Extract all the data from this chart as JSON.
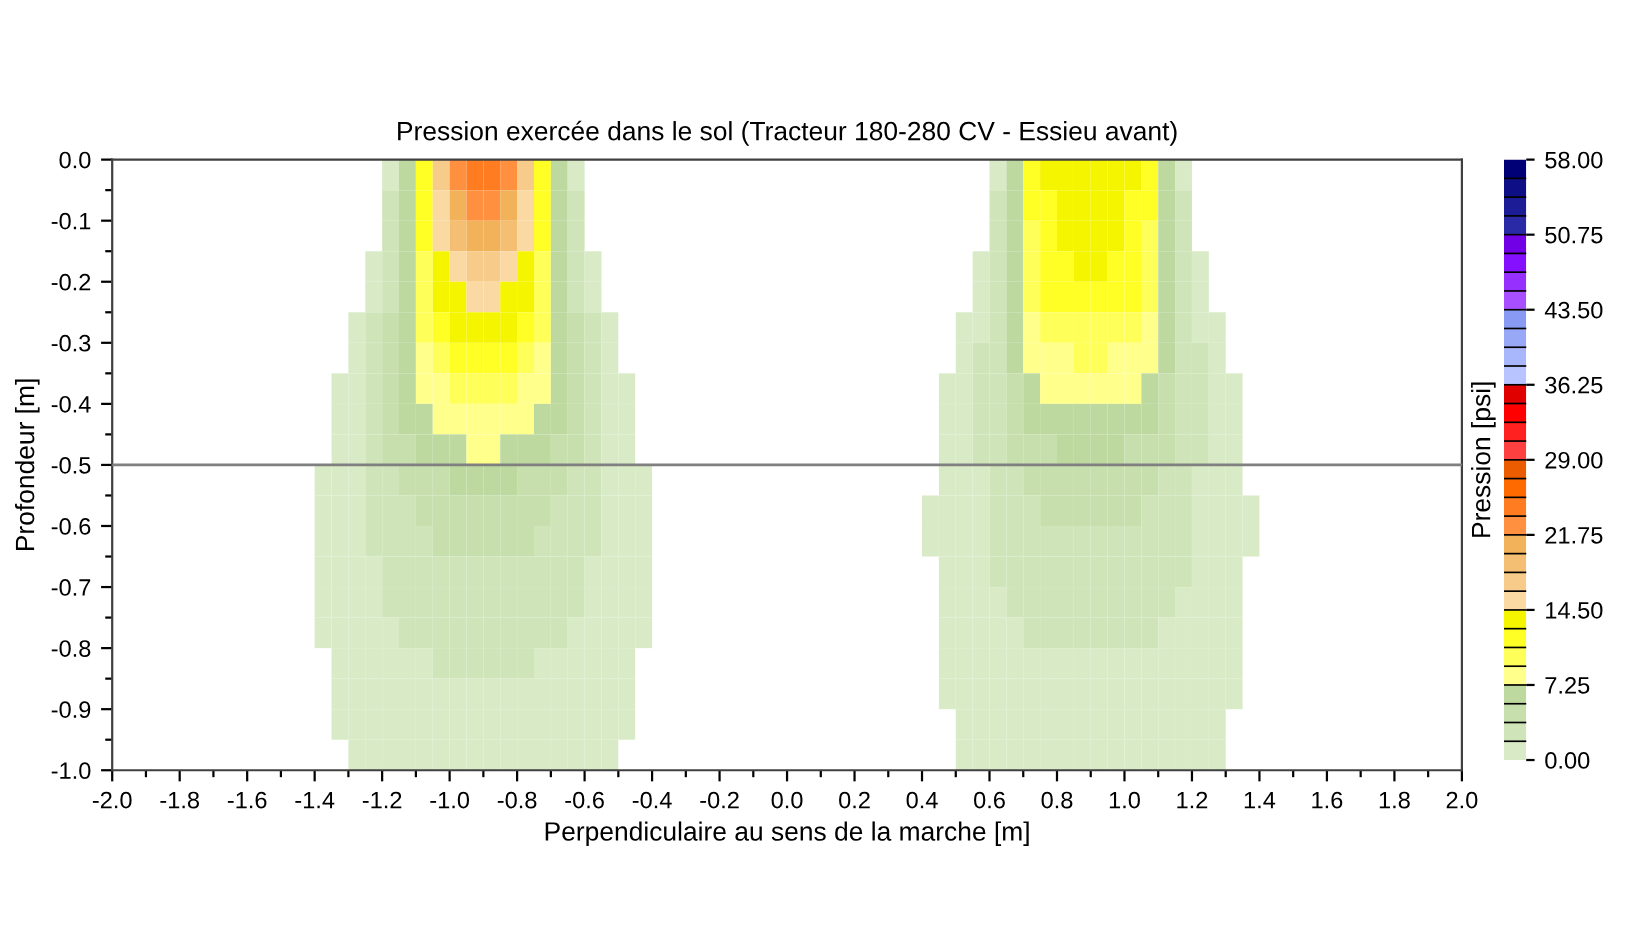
{
  "chart_data": {
    "type": "heatmap",
    "title": "Pression exercée dans le sol (Tracteur 180-280 CV - Essieu avant)",
    "xlabel": "Perpendiculaire au sens de la marche [m]",
    "ylabel": "Profondeur [m]",
    "clabel": "Pression [psi]",
    "x": [
      -1.425,
      -1.375,
      -1.325,
      -1.275,
      -1.225,
      -1.175,
      -1.125,
      -1.075,
      -1.025,
      -0.975,
      -0.925,
      -0.875,
      -0.825,
      -0.775,
      -0.725,
      -0.675,
      -0.625,
      -0.575,
      -0.525,
      -0.475,
      -0.425,
      -0.375,
      -0.325,
      -0.275,
      -0.225,
      -0.175,
      -0.125,
      -0.075,
      -0.025,
      0.025,
      0.075,
      0.125,
      0.175,
      0.225,
      0.275,
      0.325,
      0.375,
      0.425,
      0.475,
      0.525,
      0.575,
      0.625,
      0.675,
      0.725,
      0.775,
      0.825,
      0.875,
      0.925,
      0.975,
      1.025,
      1.075,
      1.125,
      1.175,
      1.225,
      1.275,
      1.325,
      1.375,
      1.425
    ],
    "cells": [
      [
        null,
        null,
        null,
        null,
        null,
        0.9,
        6.3,
        11.8,
        17.2,
        22.7,
        24.5,
        24.5,
        22.7,
        17.2,
        11.8,
        6.3,
        0.9,
        null,
        null,
        null,
        null,
        null,
        null,
        null,
        null,
        null,
        null,
        null,
        null,
        null,
        null,
        null,
        null,
        null,
        null,
        null,
        null,
        null,
        null,
        null,
        null,
        0.9,
        6.3,
        11.8,
        13.6,
        13.6,
        13.6,
        13.6,
        13.6,
        13.6,
        11.8,
        6.3,
        0.9,
        null,
        null,
        null,
        null,
        null
      ],
      [
        null,
        null,
        null,
        null,
        null,
        2.7,
        6.3,
        11.8,
        15.4,
        20.8,
        22.7,
        22.7,
        20.8,
        15.4,
        11.8,
        6.3,
        2.7,
        null,
        null,
        null,
        null,
        null,
        null,
        null,
        null,
        null,
        null,
        null,
        null,
        null,
        null,
        null,
        null,
        null,
        null,
        null,
        null,
        null,
        null,
        null,
        null,
        2.7,
        6.3,
        11.8,
        11.8,
        13.6,
        13.6,
        13.6,
        13.6,
        11.8,
        11.8,
        6.3,
        2.7,
        null,
        null,
        null,
        null,
        null
      ],
      [
        null,
        null,
        null,
        null,
        null,
        2.7,
        6.3,
        11.8,
        15.4,
        19,
        20.8,
        20.8,
        19,
        15.4,
        11.8,
        6.3,
        2.7,
        null,
        null,
        null,
        null,
        null,
        null,
        null,
        null,
        null,
        null,
        null,
        null,
        null,
        null,
        null,
        null,
        null,
        null,
        null,
        null,
        null,
        null,
        null,
        null,
        2.7,
        6.3,
        10,
        11.8,
        13.6,
        13.6,
        13.6,
        13.6,
        11.8,
        10,
        6.3,
        2.7,
        null,
        null,
        null,
        null,
        null
      ],
      [
        null,
        null,
        null,
        null,
        0.9,
        2.7,
        6.3,
        10,
        13.6,
        15.4,
        17.2,
        17.2,
        15.4,
        13.6,
        10,
        6.3,
        2.7,
        0.9,
        null,
        null,
        null,
        null,
        null,
        null,
        null,
        null,
        null,
        null,
        null,
        null,
        null,
        null,
        null,
        null,
        null,
        null,
        null,
        null,
        null,
        null,
        0.9,
        2.7,
        6.3,
        10,
        11.8,
        11.8,
        13.6,
        13.6,
        11.8,
        11.8,
        10,
        6.3,
        2.7,
        0.9,
        null,
        null,
        null,
        null
      ],
      [
        null,
        null,
        null,
        null,
        0.9,
        2.7,
        6.3,
        10,
        13.6,
        13.6,
        15.4,
        15.4,
        13.6,
        13.6,
        10,
        6.3,
        2.7,
        0.9,
        null,
        null,
        null,
        null,
        null,
        null,
        null,
        null,
        null,
        null,
        null,
        null,
        null,
        null,
        null,
        null,
        null,
        null,
        null,
        null,
        null,
        null,
        0.9,
        2.7,
        6.3,
        10,
        11.8,
        11.8,
        11.8,
        11.8,
        11.8,
        11.8,
        10,
        6.3,
        2.7,
        0.9,
        null,
        null,
        null,
        null
      ],
      [
        null,
        null,
        null,
        0.9,
        2.7,
        4.5,
        6.3,
        10,
        11.8,
        13.6,
        13.6,
        13.6,
        13.6,
        11.8,
        10,
        6.3,
        4.5,
        2.7,
        0.9,
        null,
        null,
        null,
        null,
        null,
        null,
        null,
        null,
        null,
        null,
        null,
        null,
        null,
        null,
        null,
        null,
        null,
        null,
        null,
        null,
        0.9,
        0.9,
        2.7,
        6.3,
        8.2,
        10,
        10,
        10,
        10,
        10,
        10,
        8.2,
        6.3,
        2.7,
        0.9,
        0.9,
        null,
        null,
        null
      ],
      [
        null,
        null,
        null,
        0.9,
        2.7,
        4.5,
        6.3,
        8.2,
        10,
        11.8,
        11.8,
        11.8,
        11.8,
        10,
        8.2,
        6.3,
        4.5,
        2.7,
        0.9,
        null,
        null,
        null,
        null,
        null,
        null,
        null,
        null,
        null,
        null,
        null,
        null,
        null,
        null,
        null,
        null,
        null,
        null,
        null,
        null,
        0.9,
        2.7,
        2.7,
        6.3,
        8.2,
        8.2,
        8.2,
        10,
        10,
        8.2,
        8.2,
        8.2,
        6.3,
        2.7,
        2.7,
        0.9,
        null,
        null,
        null
      ],
      [
        null,
        null,
        0.9,
        0.9,
        2.7,
        4.5,
        6.3,
        8.2,
        8.2,
        10,
        10,
        10,
        10,
        8.2,
        8.2,
        6.3,
        4.5,
        2.7,
        0.9,
        0.9,
        null,
        null,
        null,
        null,
        null,
        null,
        null,
        null,
        null,
        null,
        null,
        null,
        null,
        null,
        null,
        null,
        null,
        null,
        0.9,
        0.9,
        2.7,
        2.7,
        4.5,
        6.3,
        8.2,
        8.2,
        8.2,
        8.2,
        8.2,
        8.2,
        6.3,
        4.5,
        2.7,
        2.7,
        0.9,
        0.9,
        null,
        null
      ],
      [
        null,
        null,
        0.9,
        0.9,
        2.7,
        4.5,
        6.3,
        6.3,
        8.2,
        8.2,
        8.2,
        8.2,
        8.2,
        8.2,
        6.3,
        6.3,
        4.5,
        2.7,
        0.9,
        0.9,
        null,
        null,
        null,
        null,
        null,
        null,
        null,
        null,
        null,
        null,
        null,
        null,
        null,
        null,
        null,
        null,
        null,
        null,
        0.9,
        0.9,
        2.7,
        2.7,
        4.5,
        6.3,
        6.3,
        6.3,
        6.3,
        6.3,
        6.3,
        6.3,
        6.3,
        4.5,
        2.7,
        2.7,
        0.9,
        0.9,
        null,
        null
      ],
      [
        null,
        null,
        0.9,
        0.9,
        2.7,
        4.5,
        4.5,
        6.3,
        6.3,
        6.3,
        8.2,
        8.2,
        6.3,
        6.3,
        6.3,
        4.5,
        4.5,
        2.7,
        0.9,
        0.9,
        null,
        null,
        null,
        null,
        null,
        null,
        null,
        null,
        null,
        null,
        null,
        null,
        null,
        null,
        null,
        null,
        null,
        null,
        0.9,
        0.9,
        2.7,
        2.7,
        4.5,
        4.5,
        4.5,
        6.3,
        6.3,
        6.3,
        6.3,
        4.5,
        4.5,
        4.5,
        2.7,
        2.7,
        0.9,
        0.9,
        null,
        null
      ],
      [
        null,
        0.9,
        0.9,
        0.9,
        2.7,
        2.7,
        4.5,
        4.5,
        4.5,
        6.3,
        6.3,
        6.3,
        6.3,
        4.5,
        4.5,
        4.5,
        2.7,
        2.7,
        0.9,
        0.9,
        0.9,
        null,
        null,
        null,
        null,
        null,
        null,
        null,
        null,
        null,
        null,
        null,
        null,
        null,
        null,
        null,
        null,
        null,
        0.9,
        0.9,
        0.9,
        2.7,
        2.7,
        4.5,
        4.5,
        4.5,
        4.5,
        4.5,
        4.5,
        4.5,
        4.5,
        2.7,
        2.7,
        0.9,
        0.9,
        0.9,
        null,
        null
      ],
      [
        null,
        0.9,
        0.9,
        0.9,
        2.7,
        2.7,
        2.7,
        4.5,
        4.5,
        4.5,
        4.5,
        4.5,
        4.5,
        4.5,
        4.5,
        2.7,
        2.7,
        2.7,
        0.9,
        0.9,
        0.9,
        null,
        null,
        null,
        null,
        null,
        null,
        null,
        null,
        null,
        null,
        null,
        null,
        null,
        null,
        null,
        null,
        0.9,
        0.9,
        0.9,
        0.9,
        2.7,
        2.7,
        2.7,
        4.5,
        4.5,
        4.5,
        4.5,
        4.5,
        4.5,
        2.7,
        2.7,
        2.7,
        0.9,
        0.9,
        0.9,
        0.9,
        null
      ],
      [
        null,
        0.9,
        0.9,
        0.9,
        2.7,
        2.7,
        2.7,
        2.7,
        4.5,
        4.5,
        4.5,
        4.5,
        4.5,
        4.5,
        2.7,
        2.7,
        2.7,
        2.7,
        0.9,
        0.9,
        0.9,
        null,
        null,
        null,
        null,
        null,
        null,
        null,
        null,
        null,
        null,
        null,
        null,
        null,
        null,
        null,
        null,
        0.9,
        0.9,
        0.9,
        0.9,
        2.7,
        2.7,
        2.7,
        2.7,
        2.7,
        2.7,
        2.7,
        2.7,
        2.7,
        2.7,
        2.7,
        2.7,
        0.9,
        0.9,
        0.9,
        0.9,
        null
      ],
      [
        null,
        0.9,
        0.9,
        0.9,
        0.9,
        2.7,
        2.7,
        2.7,
        2.7,
        2.7,
        2.7,
        2.7,
        2.7,
        2.7,
        2.7,
        2.7,
        2.7,
        0.9,
        0.9,
        0.9,
        0.9,
        null,
        null,
        null,
        null,
        null,
        null,
        null,
        null,
        null,
        null,
        null,
        null,
        null,
        null,
        null,
        null,
        null,
        0.9,
        0.9,
        0.9,
        2.7,
        2.7,
        2.7,
        2.7,
        2.7,
        2.7,
        2.7,
        2.7,
        2.7,
        2.7,
        2.7,
        2.7,
        0.9,
        0.9,
        0.9,
        null,
        null
      ],
      [
        null,
        0.9,
        0.9,
        0.9,
        0.9,
        2.7,
        2.7,
        2.7,
        2.7,
        2.7,
        2.7,
        2.7,
        2.7,
        2.7,
        2.7,
        2.7,
        2.7,
        0.9,
        0.9,
        0.9,
        0.9,
        null,
        null,
        null,
        null,
        null,
        null,
        null,
        null,
        null,
        null,
        null,
        null,
        null,
        null,
        null,
        null,
        null,
        0.9,
        0.9,
        0.9,
        0.9,
        2.7,
        2.7,
        2.7,
        2.7,
        2.7,
        2.7,
        2.7,
        2.7,
        2.7,
        2.7,
        0.9,
        0.9,
        0.9,
        0.9,
        null,
        null
      ],
      [
        null,
        0.9,
        0.9,
        0.9,
        0.9,
        0.9,
        2.7,
        2.7,
        2.7,
        2.7,
        2.7,
        2.7,
        2.7,
        2.7,
        2.7,
        2.7,
        0.9,
        0.9,
        0.9,
        0.9,
        0.9,
        null,
        null,
        null,
        null,
        null,
        null,
        null,
        null,
        null,
        null,
        null,
        null,
        null,
        null,
        null,
        null,
        null,
        0.9,
        0.9,
        0.9,
        0.9,
        0.9,
        2.7,
        2.7,
        2.7,
        2.7,
        2.7,
        2.7,
        2.7,
        2.7,
        0.9,
        0.9,
        0.9,
        0.9,
        0.9,
        null,
        null
      ],
      [
        null,
        null,
        0.9,
        0.9,
        0.9,
        0.9,
        0.9,
        0.9,
        2.7,
        2.7,
        2.7,
        2.7,
        2.7,
        2.7,
        0.9,
        0.9,
        0.9,
        0.9,
        0.9,
        0.9,
        null,
        null,
        null,
        null,
        null,
        null,
        null,
        null,
        null,
        null,
        null,
        null,
        null,
        null,
        null,
        null,
        null,
        null,
        0.9,
        0.9,
        0.9,
        0.9,
        0.9,
        0.9,
        0.9,
        0.9,
        0.9,
        0.9,
        0.9,
        0.9,
        0.9,
        0.9,
        0.9,
        0.9,
        0.9,
        0.9,
        null,
        null
      ],
      [
        null,
        null,
        0.9,
        0.9,
        0.9,
        0.9,
        0.9,
        0.9,
        0.9,
        0.9,
        0.9,
        0.9,
        0.9,
        0.9,
        0.9,
        0.9,
        0.9,
        0.9,
        0.9,
        0.9,
        null,
        null,
        null,
        null,
        null,
        null,
        null,
        null,
        null,
        null,
        null,
        null,
        null,
        null,
        null,
        null,
        null,
        null,
        0.9,
        0.9,
        0.9,
        0.9,
        0.9,
        0.9,
        0.9,
        0.9,
        0.9,
        0.9,
        0.9,
        0.9,
        0.9,
        0.9,
        0.9,
        0.9,
        0.9,
        0.9,
        null,
        null
      ],
      [
        null,
        null,
        0.9,
        0.9,
        0.9,
        0.9,
        0.9,
        0.9,
        0.9,
        0.9,
        0.9,
        0.9,
        0.9,
        0.9,
        0.9,
        0.9,
        0.9,
        0.9,
        0.9,
        0.9,
        null,
        null,
        null,
        null,
        null,
        null,
        null,
        null,
        null,
        null,
        null,
        null,
        null,
        null,
        null,
        null,
        null,
        null,
        null,
        0.9,
        0.9,
        0.9,
        0.9,
        0.9,
        0.9,
        0.9,
        0.9,
        0.9,
        0.9,
        0.9,
        0.9,
        0.9,
        0.9,
        0.9,
        0.9,
        null,
        null,
        null
      ],
      [
        null,
        null,
        null,
        0.9,
        0.9,
        0.9,
        0.9,
        0.9,
        0.9,
        0.9,
        0.9,
        0.9,
        0.9,
        0.9,
        0.9,
        0.9,
        0.9,
        0.9,
        0.9,
        null,
        null,
        null,
        null,
        null,
        null,
        null,
        null,
        null,
        null,
        null,
        null,
        null,
        null,
        null,
        null,
        null,
        null,
        null,
        null,
        0.9,
        0.9,
        0.9,
        0.9,
        0.9,
        0.9,
        0.9,
        0.9,
        0.9,
        0.9,
        0.9,
        0.9,
        0.9,
        0.9,
        0.9,
        0.9,
        null,
        null,
        null
      ]
    ],
    "colors": [
      "#d8ebc6",
      "#cfe5b9",
      "#c6dfac",
      "#bdd99f",
      "#ffff8c",
      "#ffff59",
      "#ffff26",
      "#f5f500",
      "#fad9a3",
      "#f7cc8a",
      "#f4bf72",
      "#f1b25a",
      "#ff9040",
      "#ff7d20",
      "#ff6a00",
      "#eb5c00",
      "#ff4040",
      "#ff2020",
      "#ff0000",
      "#e00000",
      "#b8c4ff",
      "#a8b6fb",
      "#98a8f7",
      "#889af3",
      "#a850ff",
      "#9630ff",
      "#8410ff",
      "#7200e6",
      "#2a2aa6",
      "#1c1c96",
      "#0e0e86",
      "#000076"
    ],
    "clim": [
      0,
      58
    ],
    "cticks": [
      {
        "value": 0,
        "label": "0.00"
      },
      {
        "value": 7.25,
        "label": "7.25"
      },
      {
        "value": 14.5,
        "label": "14.50"
      },
      {
        "value": 21.75,
        "label": "21.75"
      },
      {
        "value": 29,
        "label": "29.00"
      },
      {
        "value": 36.25,
        "label": "36.25"
      },
      {
        "value": 43.5,
        "label": "43.50"
      },
      {
        "value": 50.75,
        "label": "50.75"
      },
      {
        "value": 58,
        "label": "58.00"
      }
    ],
    "xlim": [
      -2,
      2
    ],
    "xticks": [
      {
        "value": -2,
        "label": "-2.0"
      },
      {
        "value": -1.9,
        "label": null
      },
      {
        "value": -1.8,
        "label": "-1.8"
      },
      {
        "value": -1.7,
        "label": null
      },
      {
        "value": -1.6,
        "label": "-1.6"
      },
      {
        "value": -1.5,
        "label": null
      },
      {
        "value": -1.4,
        "label": "-1.4"
      },
      {
        "value": -1.3,
        "label": null
      },
      {
        "value": -1.2,
        "label": "-1.2"
      },
      {
        "value": -1.1,
        "label": null
      },
      {
        "value": -1,
        "label": "-1.0"
      },
      {
        "value": -0.9,
        "label": null
      },
      {
        "value": -0.8,
        "label": "-0.8"
      },
      {
        "value": -0.7,
        "label": null
      },
      {
        "value": -0.6,
        "label": "-0.6"
      },
      {
        "value": -0.5,
        "label": null
      },
      {
        "value": -0.4,
        "label": "-0.4"
      },
      {
        "value": -0.3,
        "label": null
      },
      {
        "value": -0.2,
        "label": "-0.2"
      },
      {
        "value": -0.1,
        "label": null
      },
      {
        "value": 0,
        "label": "0.0"
      },
      {
        "value": 0.1,
        "label": null
      },
      {
        "value": 0.2,
        "label": "0.2"
      },
      {
        "value": 0.3,
        "label": null
      },
      {
        "value": 0.4,
        "label": "0.4"
      },
      {
        "value": 0.5,
        "label": null
      },
      {
        "value": 0.6,
        "label": "0.6"
      },
      {
        "value": 0.7,
        "label": null
      },
      {
        "value": 0.8,
        "label": "0.8"
      },
      {
        "value": 0.9,
        "label": null
      },
      {
        "value": 1,
        "label": "1.0"
      },
      {
        "value": 1.1,
        "label": null
      },
      {
        "value": 1.2,
        "label": "1.2"
      },
      {
        "value": 1.3,
        "label": null
      },
      {
        "value": 1.4,
        "label": "1.4"
      },
      {
        "value": 1.5,
        "label": null
      },
      {
        "value": 1.6,
        "label": "1.6"
      },
      {
        "value": 1.7,
        "label": null
      },
      {
        "value": 1.8,
        "label": "1.8"
      },
      {
        "value": 1.9,
        "label": null
      },
      {
        "value": 2,
        "label": "2.0"
      }
    ],
    "ylim": [
      -1,
      0
    ],
    "yticks": [
      {
        "value": 0,
        "label": "0.0"
      },
      {
        "value": -0.05,
        "label": null
      },
      {
        "value": -0.1,
        "label": "-0.1"
      },
      {
        "value": -0.15,
        "label": null
      },
      {
        "value": -0.2,
        "label": "-0.2"
      },
      {
        "value": -0.25,
        "label": null
      },
      {
        "value": -0.3,
        "label": "-0.3"
      },
      {
        "value": -0.35,
        "label": null
      },
      {
        "value": -0.4,
        "label": "-0.4"
      },
      {
        "value": -0.45,
        "label": null
      },
      {
        "value": -0.5,
        "label": "-0.5"
      },
      {
        "value": -0.55,
        "label": null
      },
      {
        "value": -0.6,
        "label": "-0.6"
      },
      {
        "value": -0.65,
        "label": null
      },
      {
        "value": -0.7,
        "label": "-0.7"
      },
      {
        "value": -0.75,
        "label": null
      },
      {
        "value": -0.8,
        "label": "-0.8"
      },
      {
        "value": -0.85,
        "label": null
      },
      {
        "value": -0.9,
        "label": "-0.9"
      },
      {
        "value": -0.95,
        "label": null
      },
      {
        "value": -1,
        "label": "-1.0"
      }
    ],
    "ref_lines": [
      {
        "axis": "y",
        "value": -0.5,
        "color": "#808080"
      }
    ]
  }
}
